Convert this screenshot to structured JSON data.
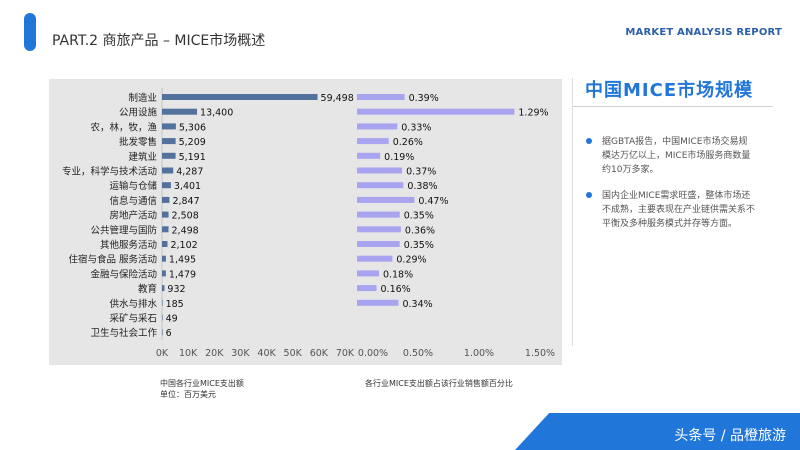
{
  "header": {
    "section_title": "PART.2 商旅产品 – MICE市场概述",
    "report_label": "MARKET ANALYSIS REPORT"
  },
  "sidebar": {
    "title": "中国MICE市场规模",
    "bullets": [
      "据GBTA报告，中国MICE市场交易规模达万亿以上，MICE市场服务商数量约10万多家。",
      "国内企业MICE需求旺盛，整体市场还不成熟，主要表现在产业链供需关系不平衡及多种服务模式并存等方面。"
    ]
  },
  "captions": {
    "left_line1": "中国各行业MICE支出额",
    "left_line2": "单位：百万美元",
    "right": "各行业MICE支出额占该行业销售额百分比"
  },
  "footer": {
    "text": "头条号 / 品橙旅游"
  },
  "colors": {
    "accent": "#2176d9",
    "bar_dark": "#52719d",
    "bar_light": "#a9a4f0"
  },
  "chart_data": [
    {
      "type": "bar",
      "orientation": "horizontal",
      "categories": [
        "制造业",
        "公用设施",
        "农，林，牧，渔",
        "批发零售",
        "建筑业",
        "专业，科学与技术活动",
        "运输与仓储",
        "信息与通信",
        "房地产活动",
        "公共管理与国防",
        "其他服务活动",
        "住宿与食品 服务活动",
        "金融与保险活动",
        "教育",
        "供水与排水",
        "采矿与采石",
        "卫生与社会工作"
      ],
      "values": [
        59498,
        13400,
        5306,
        5209,
        5191,
        4287,
        3401,
        2847,
        2508,
        2498,
        2102,
        1495,
        1479,
        932,
        185,
        49,
        6
      ],
      "value_labels": [
        "59,498",
        "13,400",
        "5,306",
        "5,209",
        "5,191",
        "4,287",
        "3,401",
        "2,847",
        "2,508",
        "2,498",
        "2,102",
        "1,495",
        "1,479",
        "932",
        "185",
        "49",
        "6"
      ],
      "xlim": [
        0,
        70000
      ],
      "xticks": [
        "0K",
        "10K",
        "20K",
        "30K",
        "40K",
        "50K",
        "60K",
        "70K"
      ]
    },
    {
      "type": "bar",
      "orientation": "horizontal",
      "categories": [
        "制造业",
        "公用设施",
        "农，林，牧，渔",
        "批发零售",
        "建筑业",
        "专业，科学与技术活动",
        "运输与仓储",
        "信息与通信",
        "房地产活动",
        "公共管理与国防",
        "其他服务活动",
        "住宿与食品 服务活动",
        "金融与保险活动",
        "教育",
        "供水与排水",
        "采矿与采石",
        "卫生与社会工作"
      ],
      "values": [
        0.39,
        1.29,
        0.33,
        0.26,
        0.19,
        0.37,
        0.38,
        0.47,
        0.35,
        0.36,
        0.35,
        0.29,
        0.18,
        0.16,
        0.34,
        null,
        null
      ],
      "value_labels": [
        "0.39%",
        "1.29%",
        "0.33%",
        "0.26%",
        "0.19%",
        "0.37%",
        "0.38%",
        "0.47%",
        "0.35%",
        "0.36%",
        "0.35%",
        "0.29%",
        "0.18%",
        "0.16%",
        "0.34%",
        "",
        ""
      ],
      "xlim": [
        0,
        1.5
      ],
      "xticks": [
        "0.00%",
        "0.50%",
        "1.00%",
        "1.50%"
      ]
    }
  ]
}
